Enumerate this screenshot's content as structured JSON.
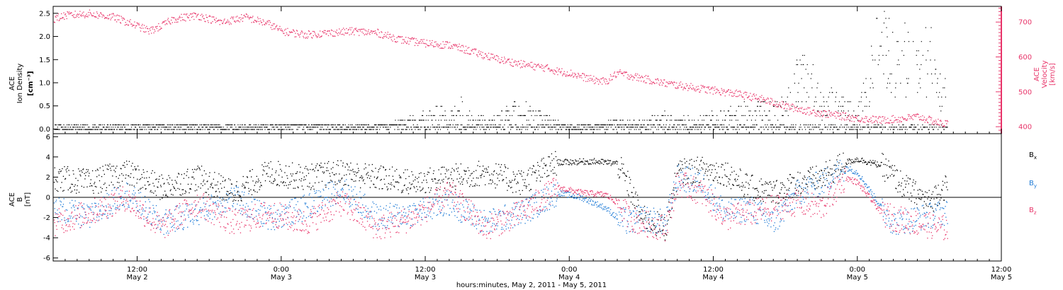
{
  "caption": "hours:minutes, May  2, 2011 - May  5, 2011",
  "colors": {
    "black": "#000000",
    "pink": "#e8356a",
    "blue": "#1f7bd6"
  },
  "x_ticks": [
    {
      "h": 12,
      "line1": "12:00",
      "line2": "May 2"
    },
    {
      "h": 24,
      "line1": "0:00",
      "line2": "May 3"
    },
    {
      "h": 36,
      "line1": "12:00",
      "line2": "May 3"
    },
    {
      "h": 48,
      "line1": "0:00",
      "line2": "May 4"
    },
    {
      "h": 60,
      "line1": "12:00",
      "line2": "May 4"
    },
    {
      "h": 72,
      "line1": "0:00",
      "line2": "May 5"
    },
    {
      "h": 84,
      "line1": "12:00",
      "line2": "May 5"
    }
  ],
  "chart_data": [
    {
      "type": "scatter",
      "xlabel": "hours:minutes, May  2, 2011 - May  5, 2011",
      "xlim_hours": [
        5,
        84
      ],
      "left_axis": {
        "label_lines": [
          "ACE",
          "Ion Density"
        ],
        "unit": "[cm⁻³]",
        "ylim": [
          -0.1,
          2.65
        ],
        "ticks": [
          0.0,
          0.5,
          1.0,
          1.5,
          2.0,
          2.5
        ],
        "tick_labels": [
          "0.0",
          "0.5",
          "1.0",
          "1.5",
          "2.0",
          "2.5"
        ]
      },
      "right_axis": {
        "label_lines": [
          "ACE",
          "Velocity"
        ],
        "unit": "[km/s]",
        "ylim": [
          380,
          745
        ],
        "ticks": [
          400,
          500,
          600,
          700
        ],
        "tick_labels": [
          "400",
          "500",
          "600",
          "700"
        ]
      },
      "series": [
        {
          "axis": "left",
          "color": "#000000",
          "points": [
            [
              5,
              0.05
            ],
            [
              10,
              0.05
            ],
            [
              14,
              0.08
            ],
            [
              18,
              0.05
            ],
            [
              22,
              0.05
            ],
            [
              26,
              0.08
            ],
            [
              30,
              0.05
            ],
            [
              33,
              0.1
            ],
            [
              35,
              0.25
            ],
            [
              37,
              0.4
            ],
            [
              38,
              0.3
            ],
            [
              39,
              0.55
            ],
            [
              40,
              0.2
            ],
            [
              42,
              0.3
            ],
            [
              44,
              0.5
            ],
            [
              46,
              0.25
            ],
            [
              48,
              0.05
            ],
            [
              50,
              0.05
            ],
            [
              52,
              0.2
            ],
            [
              54,
              0.15
            ],
            [
              56,
              0.3
            ],
            [
              58,
              0.2
            ],
            [
              60,
              0.3
            ],
            [
              62,
              0.4
            ],
            [
              64,
              0.5
            ],
            [
              66,
              0.6
            ],
            [
              67,
              1.2
            ],
            [
              68,
              1.5
            ],
            [
              69,
              0.6
            ],
            [
              70,
              0.7
            ],
            [
              71,
              0.5
            ],
            [
              72,
              0.5
            ],
            [
              73,
              1.3
            ],
            [
              74,
              2.4
            ],
            [
              75,
              1.6
            ],
            [
              76,
              1.8
            ],
            [
              77,
              1.4
            ],
            [
              78,
              1.9
            ],
            [
              79,
              0.9
            ]
          ]
        },
        {
          "axis": "right",
          "color": "#e8356a",
          "points": [
            [
              5,
              710
            ],
            [
              6,
              720
            ],
            [
              8,
              725
            ],
            [
              10,
              715
            ],
            [
              12,
              690
            ],
            [
              13,
              675
            ],
            [
              14,
              690
            ],
            [
              15,
              710
            ],
            [
              17,
              720
            ],
            [
              19,
              700
            ],
            [
              21,
              715
            ],
            [
              23,
              695
            ],
            [
              24,
              675
            ],
            [
              26,
              665
            ],
            [
              28,
              670
            ],
            [
              30,
              675
            ],
            [
              32,
              670
            ],
            [
              34,
              650
            ],
            [
              36,
              640
            ],
            [
              38,
              635
            ],
            [
              40,
              615
            ],
            [
              42,
              595
            ],
            [
              44,
              580
            ],
            [
              46,
              570
            ],
            [
              47,
              560
            ],
            [
              48,
              555
            ],
            [
              49,
              545
            ],
            [
              50,
              535
            ],
            [
              51,
              530
            ],
            [
              52,
              555
            ],
            [
              54,
              540
            ],
            [
              56,
              525
            ],
            [
              58,
              515
            ],
            [
              60,
              505
            ],
            [
              62,
              495
            ],
            [
              64,
              480
            ],
            [
              66,
              460
            ],
            [
              68,
              445
            ],
            [
              70,
              435
            ],
            [
              72,
              425
            ],
            [
              74,
              420
            ],
            [
              76,
              425
            ],
            [
              77,
              430
            ],
            [
              78,
              420
            ],
            [
              79,
              410
            ]
          ]
        }
      ]
    },
    {
      "type": "scatter",
      "xlabel": "hours:minutes, May  2, 2011 - May  5, 2011",
      "xlim_hours": [
        5,
        84
      ],
      "ylabel_lines": [
        "ACE",
        "B"
      ],
      "unit": "[nT]",
      "ylim": [
        -6.3,
        6.3
      ],
      "ticks": [
        -6,
        -4,
        -2,
        0,
        2,
        4,
        6
      ],
      "tick_labels": [
        "-6",
        "-4",
        "-2",
        "0",
        "2",
        "4",
        "6"
      ],
      "zero_line": true,
      "series": [
        {
          "name": "B",
          "sub": "x",
          "color": "#000000",
          "points": [
            [
              5,
              2.0
            ],
            [
              8,
              1.5
            ],
            [
              11,
              2.5
            ],
            [
              14,
              1.0
            ],
            [
              17,
              2.0
            ],
            [
              20,
              0.5
            ],
            [
              23,
              2.5
            ],
            [
              26,
              2.0
            ],
            [
              29,
              2.5
            ],
            [
              32,
              2.0
            ],
            [
              35,
              1.5
            ],
            [
              38,
              2.0
            ],
            [
              41,
              2.5
            ],
            [
              44,
              1.5
            ],
            [
              47,
              3.5
            ],
            [
              50,
              3.6
            ],
            [
              52,
              3.4
            ],
            [
              53,
              1.0
            ],
            [
              54,
              -2.0
            ],
            [
              55,
              -2.5
            ],
            [
              56,
              -3.0
            ],
            [
              57,
              2.5
            ],
            [
              59,
              2.8
            ],
            [
              61,
              2.5
            ],
            [
              63,
              1.0
            ],
            [
              65,
              0.5
            ],
            [
              67,
              1.5
            ],
            [
              69,
              2.0
            ],
            [
              71,
              3.5
            ],
            [
              72,
              3.8
            ],
            [
              74,
              3.2
            ],
            [
              76,
              1.0
            ],
            [
              78,
              -0.5
            ],
            [
              79,
              1.0
            ]
          ]
        },
        {
          "name": "B",
          "sub": "y",
          "color": "#1f7bd6",
          "points": [
            [
              5,
              -1.0
            ],
            [
              8,
              -2.0
            ],
            [
              11,
              0.5
            ],
            [
              14,
              -2.5
            ],
            [
              17,
              -1.5
            ],
            [
              20,
              0.0
            ],
            [
              23,
              -2.0
            ],
            [
              26,
              -1.0
            ],
            [
              29,
              1.0
            ],
            [
              32,
              -2.0
            ],
            [
              35,
              -1.5
            ],
            [
              38,
              -0.5
            ],
            [
              41,
              -2.5
            ],
            [
              44,
              -1.5
            ],
            [
              47,
              0.5
            ],
            [
              49,
              0.0
            ],
            [
              51,
              -1.0
            ],
            [
              52,
              -2.0
            ],
            [
              53,
              -2.5
            ],
            [
              54,
              -2.0
            ],
            [
              56,
              -2.5
            ],
            [
              57,
              2.0
            ],
            [
              59,
              1.5
            ],
            [
              61,
              -1.5
            ],
            [
              63,
              -1.0
            ],
            [
              65,
              -2.5
            ],
            [
              67,
              0.5
            ],
            [
              69,
              1.5
            ],
            [
              71,
              3.0
            ],
            [
              72,
              2.5
            ],
            [
              74,
              -1.0
            ],
            [
              75,
              -2.5
            ],
            [
              77,
              -2.0
            ],
            [
              79,
              -1.5
            ]
          ]
        },
        {
          "name": "B",
          "sub": "z",
          "color": "#e8356a",
          "points": [
            [
              5,
              -2.5
            ],
            [
              8,
              -1.5
            ],
            [
              11,
              0.0
            ],
            [
              14,
              -3.0
            ],
            [
              17,
              -0.5
            ],
            [
              20,
              -2.5
            ],
            [
              23,
              -1.5
            ],
            [
              26,
              -2.5
            ],
            [
              29,
              -0.5
            ],
            [
              32,
              -3.0
            ],
            [
              35,
              -2.0
            ],
            [
              38,
              0.5
            ],
            [
              41,
              -3.0
            ],
            [
              44,
              -1.5
            ],
            [
              47,
              1.0
            ],
            [
              49,
              0.5
            ],
            [
              51,
              0.3
            ],
            [
              52,
              -0.5
            ],
            [
              53,
              -2.0
            ],
            [
              54,
              -2.5
            ],
            [
              56,
              -3.0
            ],
            [
              57,
              1.5
            ],
            [
              59,
              0.5
            ],
            [
              61,
              -2.0
            ],
            [
              63,
              -1.5
            ],
            [
              65,
              -1.0
            ],
            [
              67,
              -0.5
            ],
            [
              69,
              -1.0
            ],
            [
              71,
              2.0
            ],
            [
              72,
              1.5
            ],
            [
              74,
              -1.5
            ],
            [
              75,
              -2.0
            ],
            [
              77,
              -2.5
            ],
            [
              79,
              -3.0
            ]
          ]
        }
      ]
    }
  ]
}
